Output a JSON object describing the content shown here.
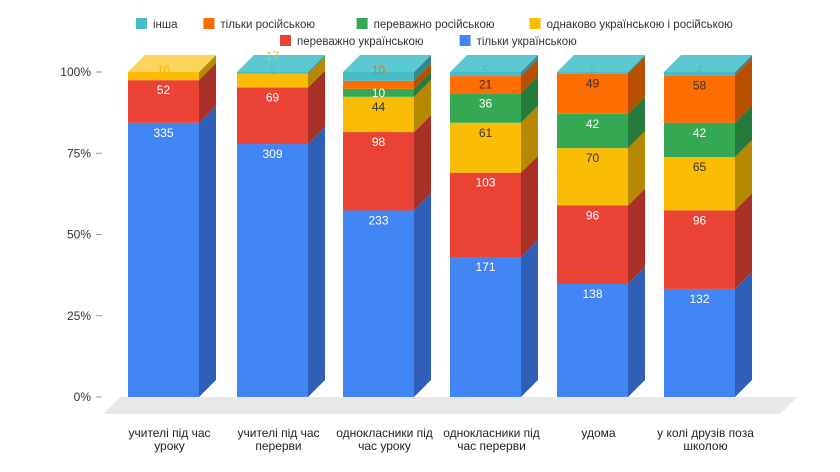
{
  "chart_data": {
    "type": "bar",
    "stacked": true,
    "normalized": true,
    "three_d": true,
    "legend_position": "top",
    "grid": false,
    "categories": [
      [
        "учителі під час",
        "уроку"
      ],
      [
        "учителі під час",
        "перерви"
      ],
      [
        "однокласники під",
        "час уроку"
      ],
      [
        "однокласники під",
        "час перерви"
      ],
      [
        "удома"
      ],
      [
        "у колі друзів поза",
        "школою"
      ]
    ],
    "yticks": [
      "0%",
      "25%",
      "50%",
      "75%",
      "100%"
    ],
    "ylim": [
      0,
      100
    ],
    "series": [
      {
        "name": "тільки українською",
        "color": "#4285F4",
        "side": "#2F5FB6",
        "top": "#6FA0F6",
        "label_color": "#ffffff",
        "values": [
          335,
          309,
          233,
          171,
          138,
          132
        ]
      },
      {
        "name": "переважно українською",
        "color": "#EA4335",
        "side": "#A93026",
        "top": "#F0766B",
        "label_color": "#ffffff",
        "values": [
          52,
          69,
          98,
          103,
          96,
          96
        ]
      },
      {
        "name": "однаково українською і російською",
        "color": "#FBBC04",
        "side": "#B78903",
        "top": "#FCD45C",
        "label_color": "#333333",
        "values": [
          10,
          17,
          44,
          61,
          70,
          65
        ]
      },
      {
        "name": "переважно російською",
        "color": "#34A853",
        "side": "#257A3C",
        "top": "#6CC286",
        "label_color": "#ffffff",
        "values": [
          0,
          0,
          10,
          36,
          42,
          42
        ]
      },
      {
        "name": "тільки російською",
        "color": "#FF6D01",
        "side": "#B84F01",
        "top": "#FF9A50",
        "label_color": "#333333",
        "values": [
          0,
          0,
          10,
          21,
          49,
          58
        ]
      },
      {
        "name": "інша",
        "color": "#46BDC6",
        "side": "#33898F",
        "top": "#5CC8D0",
        "label_color": "#46BDC6",
        "values": [
          0,
          2,
          11,
          5,
          2,
          4
        ]
      }
    ],
    "outside_labels": [
      {
        "category": 0,
        "series": 2,
        "value": 10
      },
      {
        "category": 1,
        "series": 5,
        "value": 2
      },
      {
        "category": 1,
        "series": 2,
        "value": 17
      },
      {
        "category": 2,
        "series": 4,
        "value": 10
      },
      {
        "category": 3,
        "series": 5,
        "value": 5
      },
      {
        "category": 4,
        "series": 5,
        "value": 2
      },
      {
        "category": 5,
        "series": 5,
        "value": 4
      }
    ],
    "legend_rows": [
      [
        5,
        4,
        3,
        2
      ],
      [
        1,
        0
      ]
    ]
  }
}
